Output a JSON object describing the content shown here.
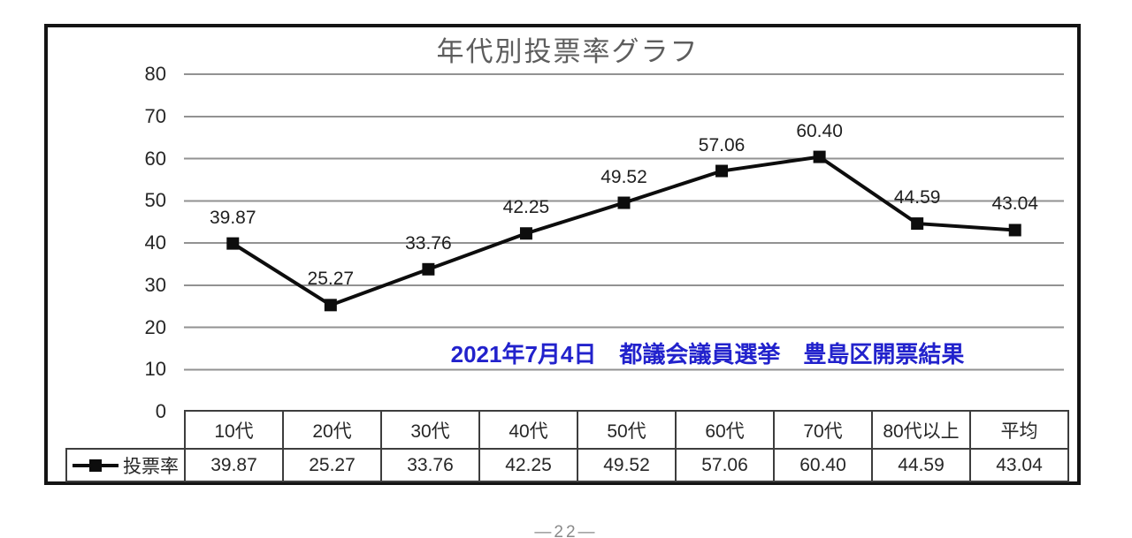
{
  "page": {
    "footer_page_number": "―22―"
  },
  "chart_data": {
    "type": "line",
    "title": "年代別投票率グラフ",
    "annotation": "2021年7月4日　都議会議員選挙　豊島区開票結果",
    "categories": [
      "10代",
      "20代",
      "30代",
      "40代",
      "50代",
      "60代",
      "70代",
      "80代以上",
      "平均"
    ],
    "series": [
      {
        "name": "投票率",
        "values": [
          39.87,
          25.27,
          33.76,
          42.25,
          49.52,
          57.06,
          60.4,
          44.59,
          43.04
        ],
        "values_text": [
          "39.87",
          "25.27",
          "33.76",
          "42.25",
          "49.52",
          "57.06",
          "60.40",
          "44.59",
          "43.04"
        ]
      }
    ],
    "xlabel": "",
    "ylabel": "",
    "ylim": [
      0,
      80
    ],
    "yticks": [
      0,
      10,
      20,
      30,
      40,
      50,
      60,
      70,
      80
    ],
    "grid": true,
    "legend_position": "table-left",
    "marker": "square",
    "colors": {
      "line": "#0d0d0d",
      "marker": "#0d0d0d",
      "grid": "#929292",
      "title": "#5d5d5d",
      "label_text": "#1f1f1f",
      "annotation": "#2222cc",
      "table_border": "#3d3d3d",
      "frame_border": "#141414"
    }
  }
}
